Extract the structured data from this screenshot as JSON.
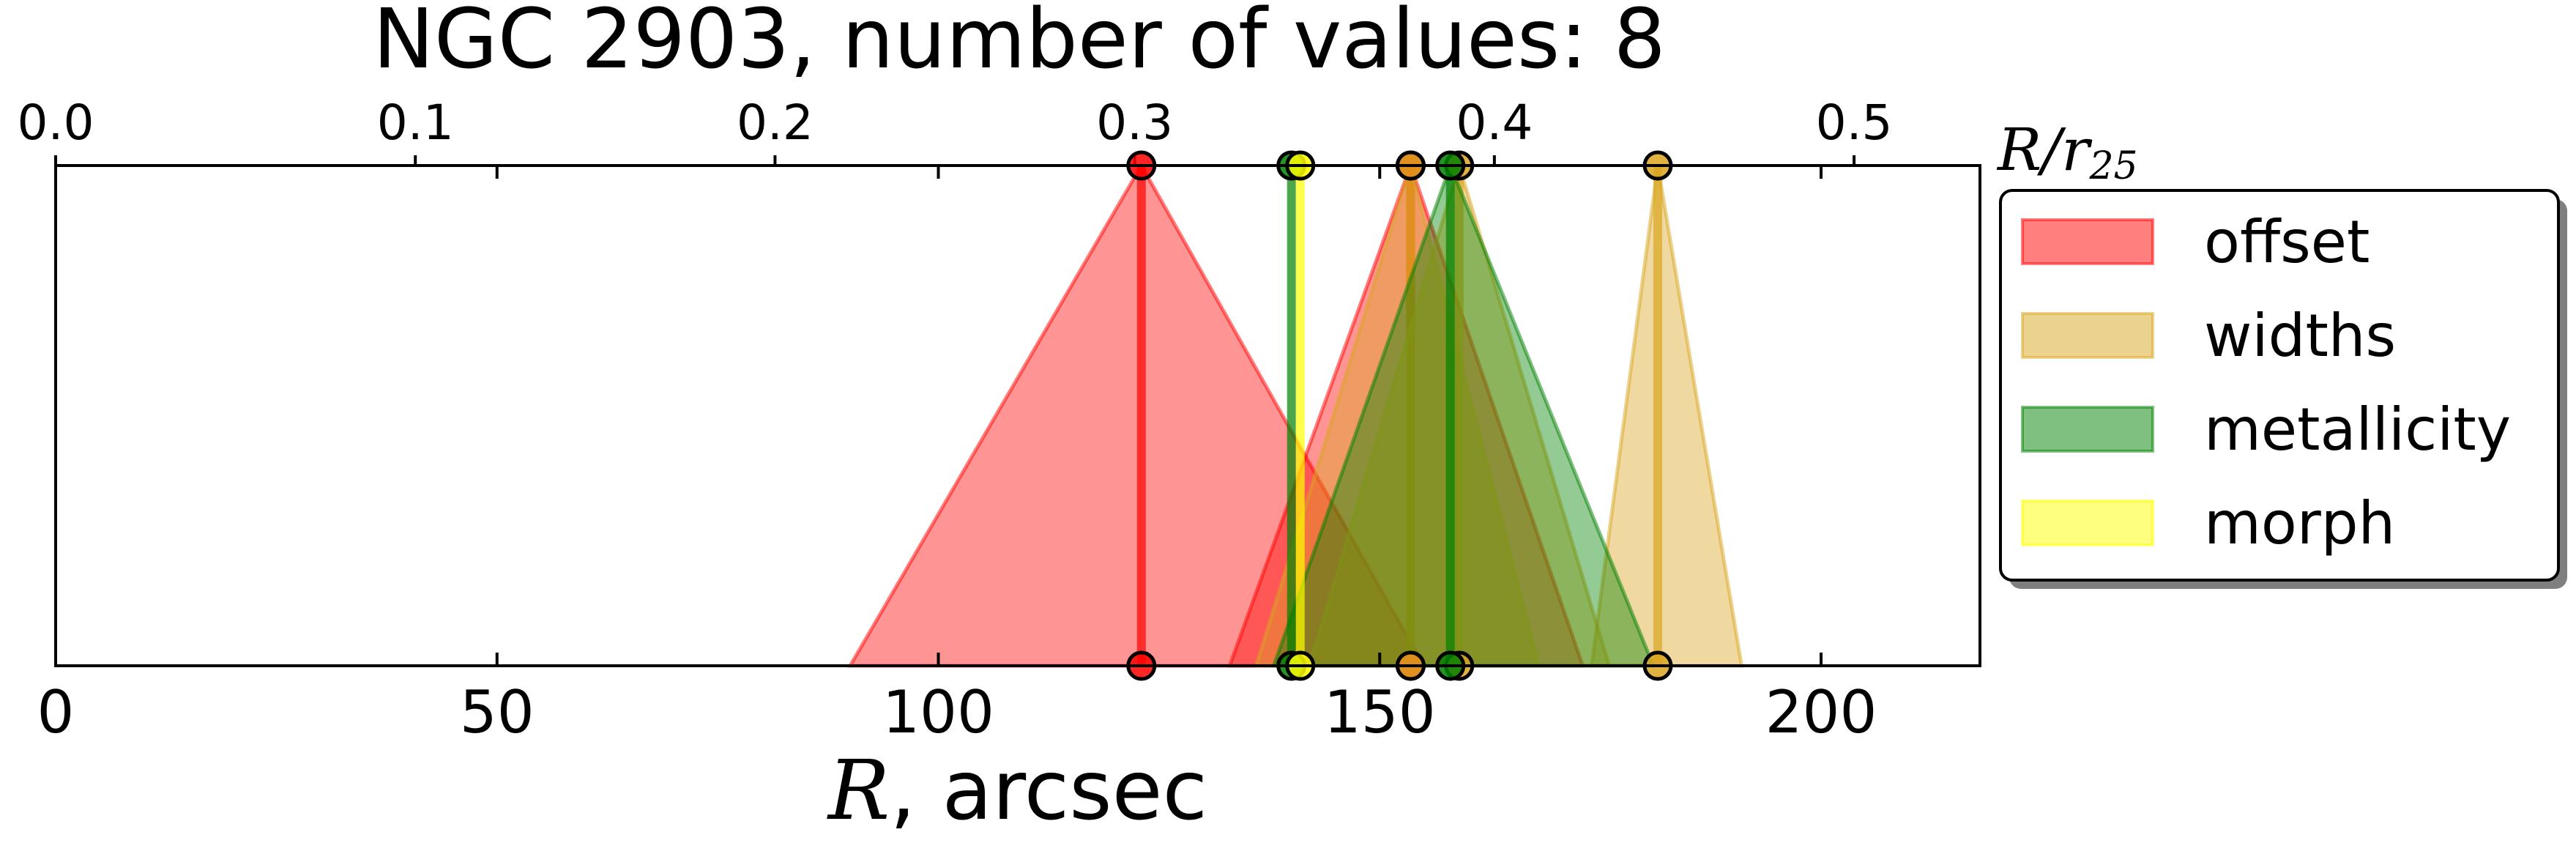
{
  "chart_data": {
    "type": "triangle-range",
    "title": "NGC 2903, number of values: 8",
    "xlabel_var": "R",
    "xlabel_rest": ", arcsec",
    "top_axis_label": "R/r",
    "top_axis_label_sub": "25",
    "xlim": [
      0,
      218
    ],
    "xticks": [
      0,
      50,
      100,
      150,
      200
    ],
    "top_xlim": [
      0,
      0.535
    ],
    "top_xticks": [
      "0.0",
      "0.1",
      "0.2",
      "0.3",
      "0.4",
      "0.5"
    ],
    "top_xtick_values": [
      0.0,
      0.1,
      0.2,
      0.3,
      0.4,
      0.5
    ],
    "grid": false,
    "legend_position": "right",
    "legend": [
      {
        "label": "offset",
        "color": "#ff0000"
      },
      {
        "label": "widths",
        "color": "#daa520"
      },
      {
        "label": "metallicity",
        "color": "#008000"
      },
      {
        "label": "morph",
        "color": "#ffff00"
      }
    ],
    "series": [
      {
        "category": "offset",
        "color": "#ff0000",
        "center": 123,
        "low": 90,
        "high": 155
      },
      {
        "category": "offset",
        "color": "#ff0000",
        "center": 153.5,
        "low": 133,
        "high": 173
      },
      {
        "category": "widths",
        "color": "#daa520",
        "center": 159,
        "low": 142,
        "high": 176
      },
      {
        "category": "widths",
        "color": "#daa520",
        "center": 181.5,
        "low": 174,
        "high": 191
      },
      {
        "category": "widths",
        "color": "#daa520",
        "center": 153.5,
        "low": 136,
        "high": 168
      },
      {
        "category": "metallicity",
        "color": "#008000",
        "center": 140,
        "low": 140,
        "high": 140
      },
      {
        "category": "metallicity",
        "color": "#008000",
        "center": 158,
        "low": 138,
        "high": 181
      },
      {
        "category": "morph",
        "color": "#ffff00",
        "center": 141,
        "low": 141,
        "high": 141
      }
    ]
  }
}
